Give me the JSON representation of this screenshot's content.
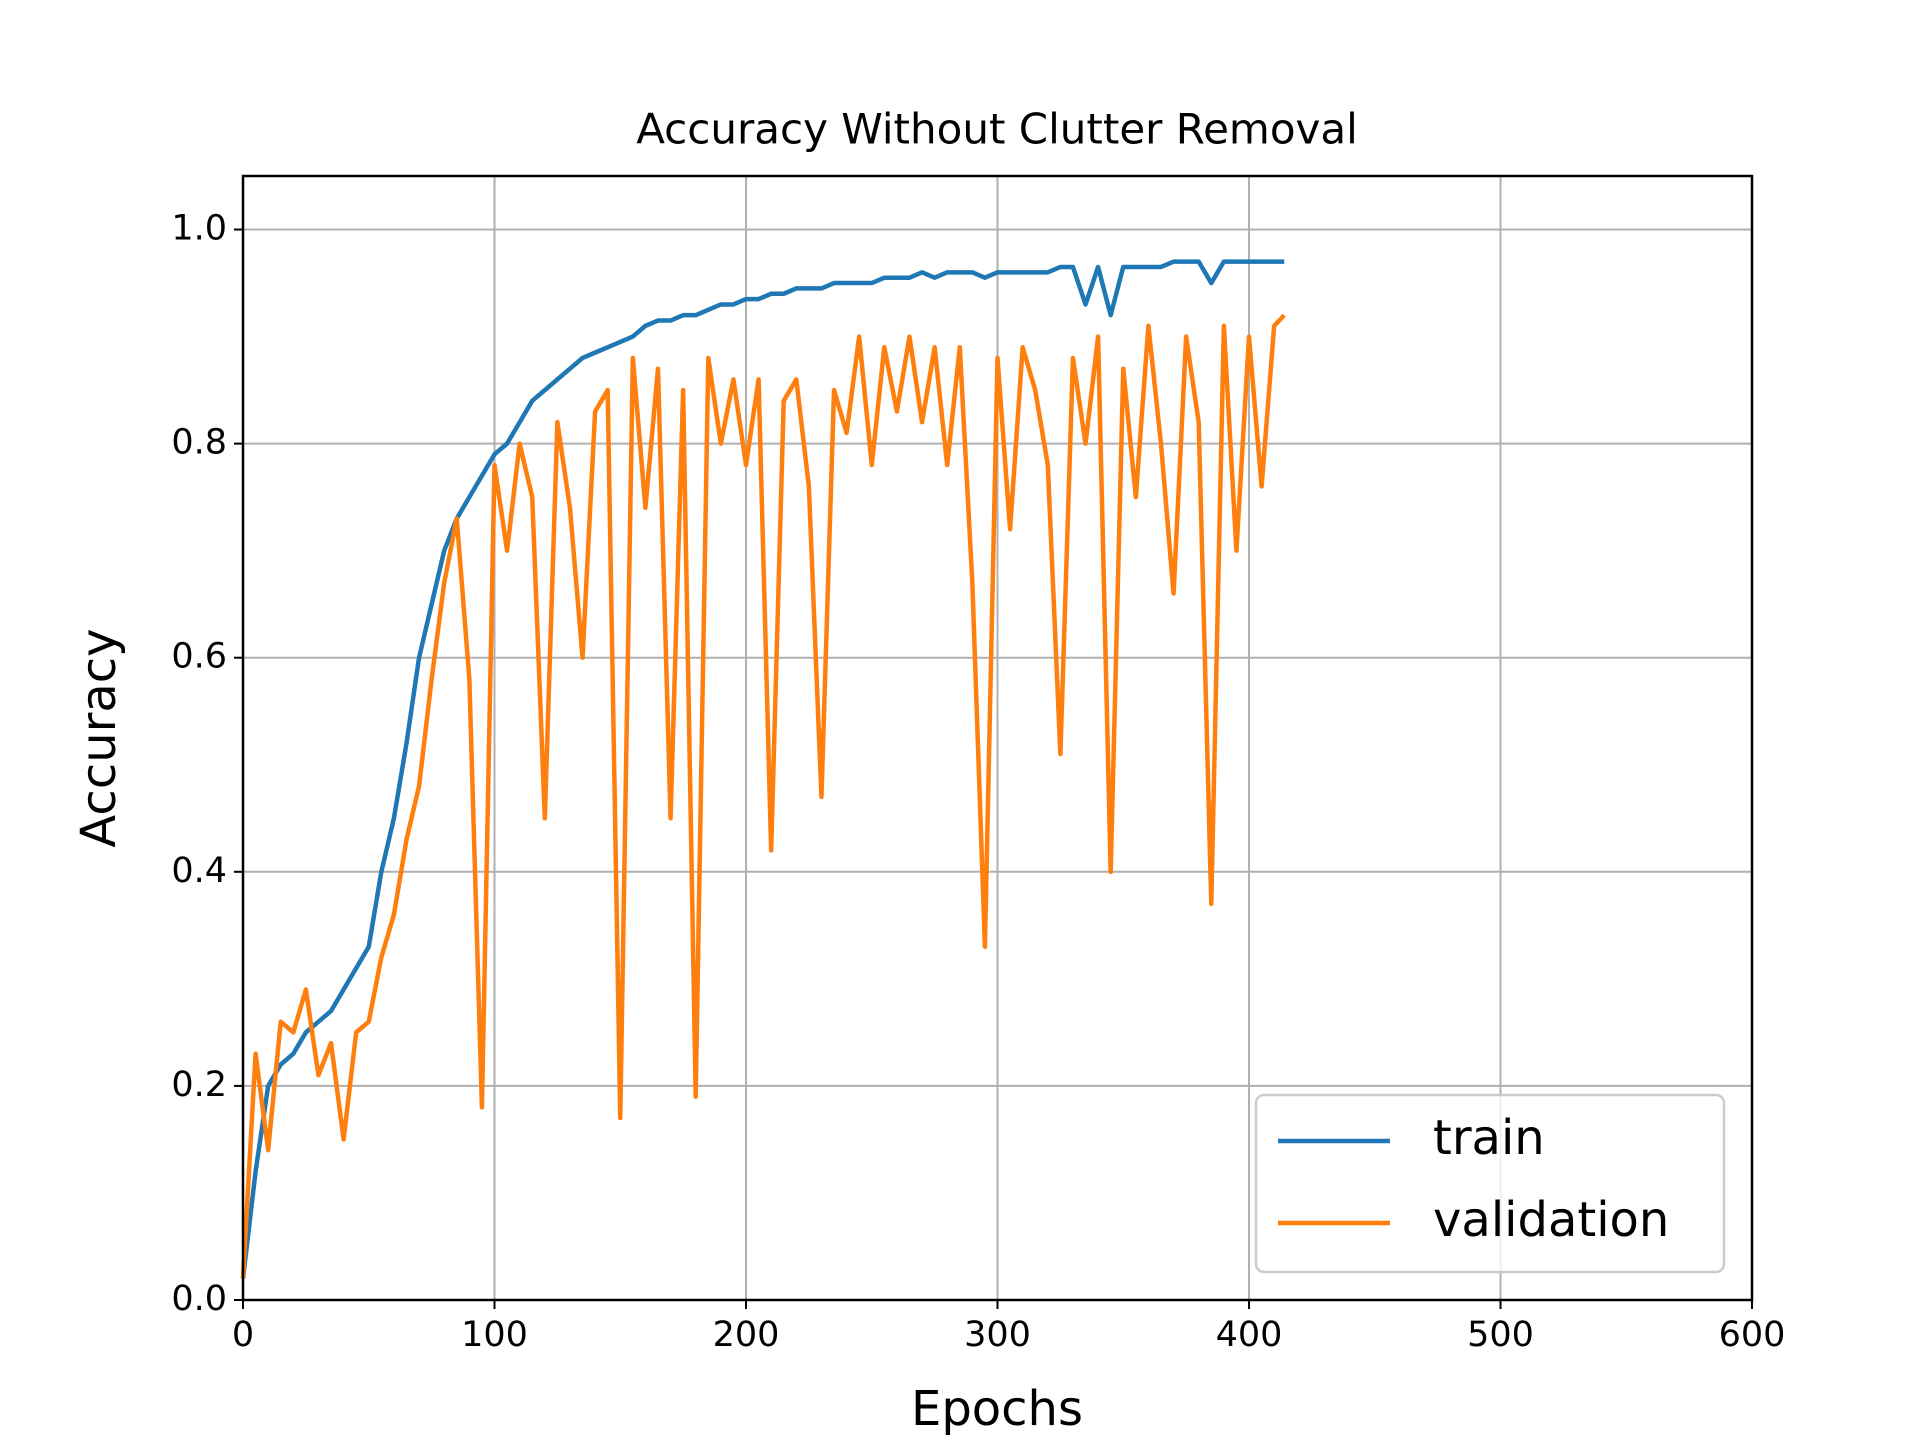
{
  "chart_data": {
    "type": "line",
    "title": "Accuracy Without Clutter Removal",
    "xlabel": "Epochs",
    "ylabel": "Accuracy",
    "x": [
      0,
      5,
      10,
      15,
      20,
      25,
      30,
      35,
      40,
      45,
      50,
      55,
      60,
      65,
      70,
      75,
      80,
      85,
      90,
      95,
      100,
      105,
      110,
      115,
      120,
      125,
      130,
      135,
      140,
      145,
      150,
      155,
      160,
      165,
      170,
      175,
      180,
      185,
      190,
      195,
      200,
      205,
      210,
      215,
      220,
      225,
      230,
      235,
      240,
      245,
      250,
      255,
      260,
      265,
      270,
      275,
      280,
      285,
      290,
      295,
      300,
      305,
      310,
      315,
      320,
      325,
      330,
      335,
      340,
      345,
      350,
      355,
      360,
      365,
      370,
      375,
      380,
      385,
      390,
      395,
      400,
      405,
      410,
      414
    ],
    "series": [
      {
        "name": "train",
        "color": "#1f77b4",
        "values": [
          0.02,
          0.12,
          0.2,
          0.22,
          0.23,
          0.25,
          0.26,
          0.27,
          0.29,
          0.31,
          0.33,
          0.4,
          0.45,
          0.52,
          0.6,
          0.65,
          0.7,
          0.73,
          0.75,
          0.77,
          0.79,
          0.8,
          0.82,
          0.84,
          0.85,
          0.86,
          0.87,
          0.88,
          0.885,
          0.89,
          0.895,
          0.9,
          0.91,
          0.915,
          0.915,
          0.92,
          0.92,
          0.925,
          0.93,
          0.93,
          0.935,
          0.935,
          0.94,
          0.94,
          0.945,
          0.945,
          0.945,
          0.95,
          0.95,
          0.95,
          0.95,
          0.955,
          0.955,
          0.955,
          0.96,
          0.955,
          0.96,
          0.96,
          0.96,
          0.955,
          0.96,
          0.96,
          0.96,
          0.96,
          0.96,
          0.965,
          0.965,
          0.93,
          0.965,
          0.92,
          0.965,
          0.965,
          0.965,
          0.965,
          0.97,
          0.97,
          0.97,
          0.95,
          0.97,
          0.97,
          0.97,
          0.97,
          0.97,
          0.97
        ]
      },
      {
        "name": "validation",
        "color": "#ff7f0e",
        "values": [
          0.02,
          0.23,
          0.14,
          0.26,
          0.25,
          0.29,
          0.21,
          0.24,
          0.15,
          0.25,
          0.26,
          0.32,
          0.36,
          0.43,
          0.48,
          0.58,
          0.67,
          0.73,
          0.58,
          0.18,
          0.78,
          0.7,
          0.8,
          0.75,
          0.45,
          0.82,
          0.74,
          0.6,
          0.83,
          0.85,
          0.17,
          0.88,
          0.74,
          0.87,
          0.45,
          0.85,
          0.19,
          0.88,
          0.8,
          0.86,
          0.78,
          0.86,
          0.42,
          0.84,
          0.86,
          0.76,
          0.47,
          0.85,
          0.81,
          0.9,
          0.78,
          0.89,
          0.83,
          0.9,
          0.82,
          0.89,
          0.78,
          0.89,
          0.67,
          0.33,
          0.88,
          0.72,
          0.89,
          0.85,
          0.78,
          0.51,
          0.88,
          0.8,
          0.9,
          0.4,
          0.87,
          0.75,
          0.91,
          0.8,
          0.66,
          0.9,
          0.82,
          0.37,
          0.91,
          0.7,
          0.9,
          0.76,
          0.91,
          0.92
        ]
      }
    ],
    "xlim": [
      0,
      600
    ],
    "xticks": [
      0,
      100,
      200,
      300,
      400,
      500,
      600
    ],
    "ylim": [
      0,
      1.05
    ],
    "yticks": [
      {
        "value": 0,
        "label": "0.0"
      },
      0.2,
      0.4,
      0.6,
      0.8,
      {
        "value": 1,
        "label": "1.0"
      }
    ],
    "grid": true,
    "legend": "lower right"
  }
}
